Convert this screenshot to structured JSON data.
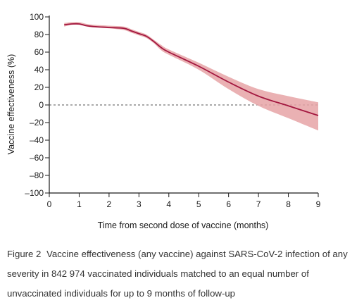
{
  "chart_data": {
    "type": "line",
    "xlabel": "Time from second dose of vaccine (months)",
    "ylabel": "Vaccine effectiveness (%)",
    "xlim": [
      0,
      9
    ],
    "ylim": [
      -100,
      100
    ],
    "x_ticks": [
      "0",
      "1",
      "2",
      "3",
      "4",
      "5",
      "6",
      "7",
      "8",
      "9"
    ],
    "y_ticks": [
      "100",
      "80",
      "60",
      "40",
      "20",
      "0",
      "–20",
      "–40",
      "–60",
      "–80",
      "–100"
    ],
    "reference_line": {
      "y": 0,
      "style": "dashed"
    },
    "grid": false,
    "legend": "none",
    "colors": {
      "line": "#a3173f",
      "band": "#e6a3a6",
      "reference": "#555555"
    },
    "series": [
      {
        "x": [
          0.5,
          0.75,
          1.0,
          1.25,
          1.5,
          2.0,
          2.5,
          2.75,
          3.0,
          3.25,
          3.5,
          3.75,
          4.0,
          5.0,
          6.0,
          7.0,
          8.0,
          9.0
        ],
        "y": [
          91,
          92,
          92,
          90,
          89,
          88,
          87,
          84,
          81,
          78,
          72,
          65,
          60,
          44,
          26,
          10,
          -1,
          -12
        ],
        "lower": [
          89,
          91,
          91,
          89,
          88,
          87,
          85,
          82,
          79,
          76,
          70,
          62,
          57,
          40,
          18,
          -1,
          -15,
          -29
        ],
        "upper": [
          93,
          94,
          94,
          92,
          91,
          90,
          89,
          86,
          83,
          80,
          74,
          68,
          63,
          48,
          32,
          18,
          10,
          3
        ]
      }
    ]
  },
  "caption": {
    "label": "Figure 2",
    "text": "Vaccine effectiveness (any vaccine) against SARS-CoV-2 infection of any severity in 842 974 vaccinated individuals matched to an equal number of unvaccinated individuals for up to 9 months of follow-up"
  }
}
